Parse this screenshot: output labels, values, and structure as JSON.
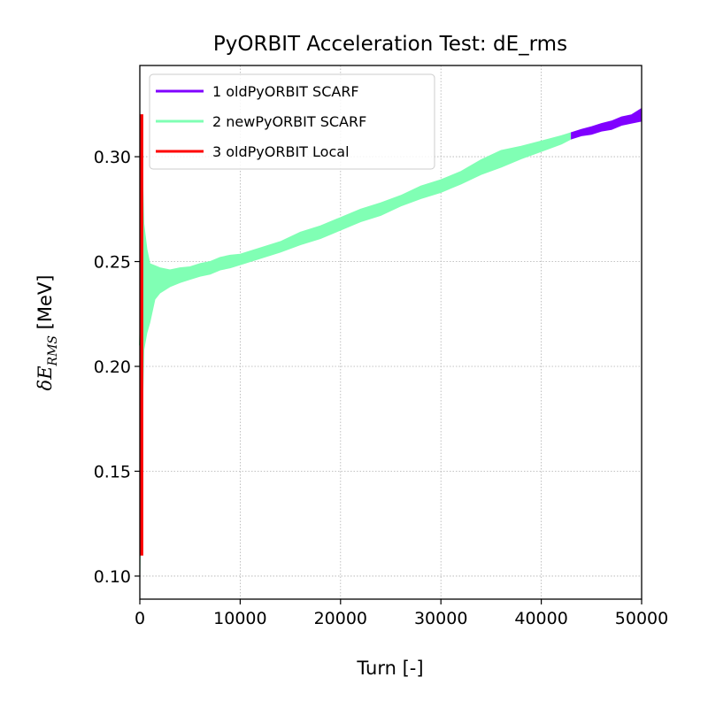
{
  "chart_data": {
    "type": "line",
    "title": "PyORBIT Acceleration Test: dE_rms",
    "xlabel": "Turn [-]",
    "ylabel": {
      "prefix": "δE",
      "subscript": "RMS",
      "suffix": " [MeV]"
    },
    "xlim": [
      0,
      50000
    ],
    "ylim": [
      0.089,
      0.3435
    ],
    "xticks": [
      0,
      10000,
      20000,
      30000,
      40000,
      50000
    ],
    "xtick_labels": [
      "0",
      "10000",
      "20000",
      "30000",
      "40000",
      "50000"
    ],
    "yticks": [
      0.1,
      0.15,
      0.2,
      0.25,
      0.3
    ],
    "ytick_labels": [
      "0.10",
      "0.15",
      "0.20",
      "0.25",
      "0.30"
    ],
    "grid": true,
    "legend_position": "top-left",
    "series": [
      {
        "name": "1 oldPyORBIT SCARF",
        "color": "#8000ff",
        "x": [
          43000,
          44000,
          45000,
          46000,
          47000,
          48000,
          49000,
          50000
        ],
        "y": [
          0.31,
          0.3115,
          0.3125,
          0.314,
          0.315,
          0.317,
          0.318,
          0.32
        ],
        "band": [
          0.0015,
          0.0015,
          0.0018,
          0.0018,
          0.002,
          0.002,
          0.002,
          0.003
        ]
      },
      {
        "name": "2 newPyORBIT SCARF",
        "color": "#80ffb4",
        "x": [
          0,
          200,
          400,
          700,
          1000,
          1500,
          2000,
          3000,
          4000,
          5000,
          6000,
          7000,
          8000,
          9000,
          10000,
          12000,
          14000,
          16000,
          18000,
          20000,
          22000,
          24000,
          26000,
          28000,
          30000,
          32000,
          34000,
          36000,
          38000,
          40000,
          42000,
          43000
        ],
        "y": [
          0.21,
          0.235,
          0.238,
          0.236,
          0.235,
          0.24,
          0.241,
          0.242,
          0.2435,
          0.2445,
          0.246,
          0.247,
          0.249,
          0.25,
          0.251,
          0.254,
          0.257,
          0.261,
          0.264,
          0.268,
          0.272,
          0.275,
          0.279,
          0.283,
          0.286,
          0.29,
          0.295,
          0.299,
          0.302,
          0.305,
          0.308,
          0.31
        ],
        "band": [
          0.11,
          0.07,
          0.03,
          0.02,
          0.014,
          0.008,
          0.006,
          0.004,
          0.0035,
          0.003,
          0.003,
          0.003,
          0.003,
          0.003,
          0.0025,
          0.0025,
          0.0025,
          0.003,
          0.003,
          0.003,
          0.003,
          0.003,
          0.0025,
          0.003,
          0.003,
          0.003,
          0.0035,
          0.004,
          0.003,
          0.0025,
          0.002,
          0.0015
        ]
      },
      {
        "name": "3 oldPyORBIT Local",
        "color": "#ff0000",
        "x": [
          0,
          100,
          200,
          300
        ],
        "y": [
          0.215,
          0.215,
          0.215,
          0.215
        ],
        "band": [
          0.105,
          0.105,
          0.105,
          0.105
        ]
      }
    ]
  }
}
